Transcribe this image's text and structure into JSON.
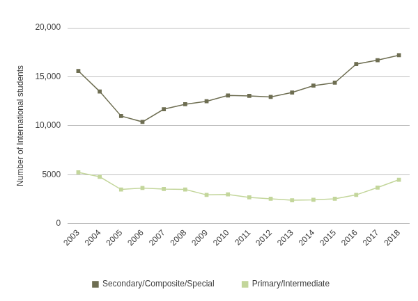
{
  "chart_data": {
    "type": "line",
    "y_label": "Number of International students",
    "categories": [
      "2003",
      "2004",
      "2005",
      "2006",
      "2007",
      "2008",
      "2009",
      "2010",
      "2011",
      "2012",
      "2013",
      "2014",
      "2015",
      "2016",
      "2017",
      "2018"
    ],
    "series": [
      {
        "name": "Secondary/Composite/Special",
        "color": "#6e6e52",
        "marker": "square",
        "values": [
          15600,
          13500,
          11000,
          10400,
          11700,
          12200,
          12500,
          13100,
          13050,
          12950,
          13400,
          14100,
          14400,
          16300,
          16700,
          17200
        ]
      },
      {
        "name": "Primary/Intermediate",
        "color": "#c3d69b",
        "marker": "square",
        "values": [
          5250,
          4800,
          3500,
          3650,
          3550,
          3500,
          2950,
          3000,
          2700,
          2550,
          2400,
          2450,
          2550,
          2950,
          3700,
          4500
        ]
      }
    ],
    "ylim": [
      0,
      20000
    ],
    "yticks": [
      0,
      5000,
      {
        "value": 10000,
        "label": "10,000"
      },
      {
        "value": 15000,
        "label": "15,000"
      },
      {
        "value": 20000,
        "label": "20,000"
      }
    ],
    "grid": true,
    "legend": "bottom"
  }
}
